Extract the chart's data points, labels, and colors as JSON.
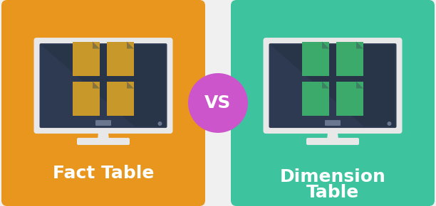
{
  "bg_color": "#f0f0f0",
  "left_bg": "#E8961E",
  "right_bg": "#3DC49F",
  "monitor_bg": "#2E3A52",
  "monitor_shadow": "#1E2A3A",
  "monitor_border": "#e8e8e8",
  "fact_doc_color": "#C8992A",
  "fact_doc_light": "#D4AA44",
  "dim_doc_color": "#3CAA6A",
  "dim_doc_light": "#50C080",
  "vs_circle_color": "#CC55CC",
  "vs_text_color": "#ffffff",
  "label_color": "#ffffff",
  "left_label": "Fact Table",
  "right_label_line1": "Dimension",
  "right_label_line2": "Table",
  "vs_text": "VS"
}
